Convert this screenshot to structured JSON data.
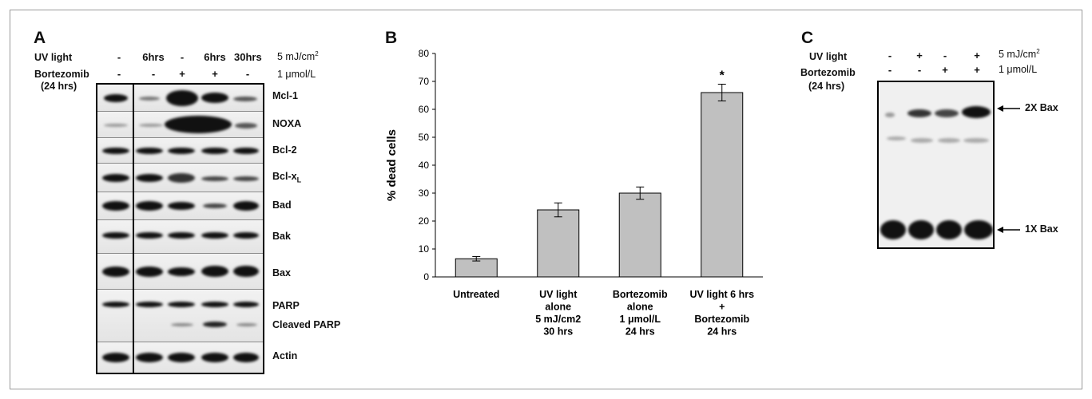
{
  "panel_a": {
    "letter": "A",
    "uv_label": "UV light",
    "uv_values": [
      "-",
      "6hrs",
      "-",
      "6hrs",
      "30hrs"
    ],
    "uv_dose": "5 mJ/cm",
    "uv_dose_sup": "2",
    "bort_label": "Bortezomib",
    "bort_values": [
      "-",
      "-",
      "+",
      "+",
      "-"
    ],
    "bort_dose": "1 μmol/L",
    "time_label": "(24 hrs)",
    "bands": [
      "Mcl-1",
      "NOXA",
      "Bcl-2",
      "Bcl-x",
      "Bad",
      "Bak",
      "Bax",
      "PARP",
      "Cleaved PARP",
      "Actin"
    ],
    "bclx_sub": "L"
  },
  "panel_b": {
    "letter": "B",
    "chart_data": {
      "type": "bar",
      "categories": [
        "Untreated",
        "UV light alone 5 mJ/cm2 30 hrs",
        "Bortezomib alone 1 μmol/L 24 hrs",
        "UV light 6 hrs + Bortezomib 24 hrs"
      ],
      "category_lines": [
        [
          "Untreated"
        ],
        [
          "UV light",
          "alone",
          "5 mJ/cm2",
          "30 hrs"
        ],
        [
          "Bortezomib",
          "alone",
          "1 μmol/L",
          "24 hrs"
        ],
        [
          "UV light 6 hrs",
          "+",
          "Bortezomib",
          "24 hrs"
        ]
      ],
      "values": [
        6.5,
        24,
        30,
        66
      ],
      "errors": [
        0.8,
        2.5,
        2.2,
        3
      ],
      "annotations": [
        "",
        "",
        "",
        "*"
      ],
      "ylabel": "% dead cells",
      "xlabel": "",
      "ylim": [
        0,
        80
      ],
      "yticks": [
        0,
        10,
        20,
        30,
        40,
        50,
        60,
        70,
        80
      ],
      "bar_color": "#c0c0c0",
      "grid": false
    }
  },
  "panel_c": {
    "letter": "C",
    "uv_label": "UV light",
    "uv_values": [
      "-",
      "+",
      "-",
      "+"
    ],
    "uv_dose": "5 mJ/cm",
    "uv_dose_sup": "2",
    "bort_label": "Bortezomib",
    "bort_values": [
      "-",
      "-",
      "+",
      "+"
    ],
    "bort_dose": "1 μmol/L",
    "time_label": "(24 hrs)",
    "band_2x": "2X Bax",
    "band_1x": "1X Bax"
  }
}
